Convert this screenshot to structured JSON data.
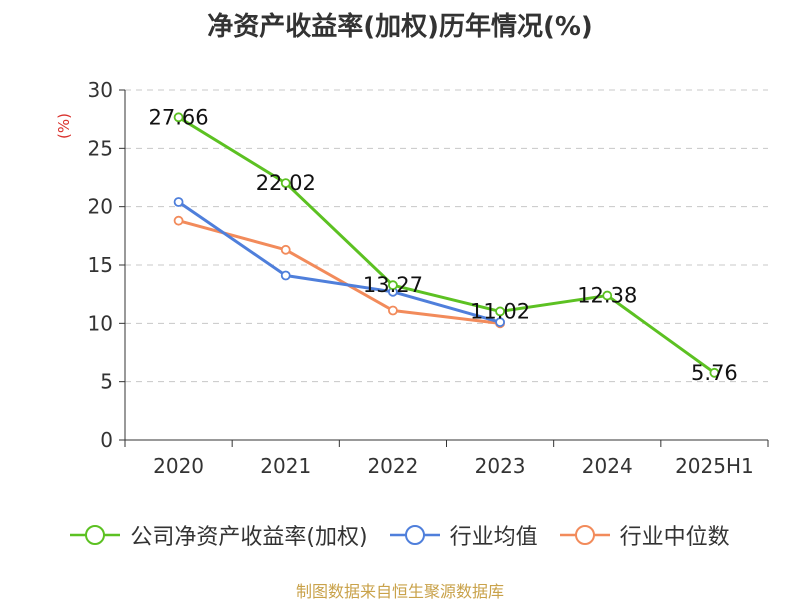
{
  "title": "净资产收益率(加权)历年情况(%)",
  "source_note": "制图数据来自恒生聚源数据库",
  "chart_data": {
    "type": "line",
    "title": "净资产收益率(加权)历年情况(%)",
    "categories": [
      "2020",
      "2021",
      "2022",
      "2023",
      "2024",
      "2025H1"
    ],
    "ylabel": "(%)",
    "ylim": [
      0,
      30
    ],
    "yticks": [
      0,
      5,
      10,
      15,
      20,
      25,
      30
    ],
    "grid": true,
    "legend_position": "bottom",
    "series": [
      {
        "name": "公司净资产收益率(加权)",
        "color": "#5cc122",
        "values": [
          27.66,
          22.02,
          13.27,
          11.02,
          12.38,
          5.76
        ],
        "labels": [
          "27.66",
          "22.02",
          "13.27",
          "11.02",
          "12.38",
          "5.76"
        ]
      },
      {
        "name": "行业均值",
        "color": "#4f7fdb",
        "values": [
          20.4,
          14.1,
          12.7,
          10.1,
          null,
          null
        ]
      },
      {
        "name": "行业中位数",
        "color": "#f28b5b",
        "values": [
          18.8,
          16.3,
          11.1,
          10.0,
          null,
          null
        ]
      }
    ]
  }
}
